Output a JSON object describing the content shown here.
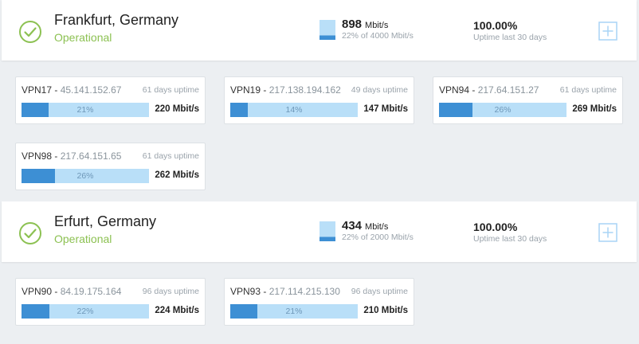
{
  "locations": [
    {
      "name": "Frankfurt, Germany",
      "status": "Operational",
      "bandwidth_value": "898",
      "bandwidth_unit": "Mbit/s",
      "bandwidth_sub": "22% of 4000 Mbit/s",
      "bandwidth_fraction": 0.22,
      "uptime_value": "100.00%",
      "uptime_sub": "Uptime last 30 days",
      "servers": [
        {
          "name": "VPN17",
          "ip": "45.141.152.67",
          "uptime": "61 days uptime",
          "load_label": "21%",
          "load": 0.21,
          "speed": "220 Mbit/s"
        },
        {
          "name": "VPN19",
          "ip": "217.138.194.162",
          "uptime": "49 days uptime",
          "load_label": "14%",
          "load": 0.14,
          "speed": "147 Mbit/s"
        },
        {
          "name": "VPN94",
          "ip": "217.64.151.27",
          "uptime": "61 days uptime",
          "load_label": "26%",
          "load": 0.26,
          "speed": "269 Mbit/s"
        },
        {
          "name": "VPN98",
          "ip": "217.64.151.65",
          "uptime": "61 days uptime",
          "load_label": "26%",
          "load": 0.26,
          "speed": "262 Mbit/s"
        }
      ]
    },
    {
      "name": "Erfurt, Germany",
      "status": "Operational",
      "bandwidth_value": "434",
      "bandwidth_unit": "Mbit/s",
      "bandwidth_sub": "22% of 2000 Mbit/s",
      "bandwidth_fraction": 0.22,
      "uptime_value": "100.00%",
      "uptime_sub": "Uptime last 30 days",
      "servers": [
        {
          "name": "VPN90",
          "ip": "84.19.175.164",
          "uptime": "96 days uptime",
          "load_label": "22%",
          "load": 0.22,
          "speed": "224 Mbit/s"
        },
        {
          "name": "VPN93",
          "ip": "217.114.215.130",
          "uptime": "96 days uptime",
          "load_label": "21%",
          "load": 0.21,
          "speed": "210 Mbit/s"
        }
      ]
    }
  ],
  "colors": {
    "operational": "#8cc152",
    "bar_fill": "#3d8fd4",
    "bar_track": "#b9dff8",
    "expand": "#a9d4f5"
  },
  "icons": {
    "status": "check-circle-icon",
    "bandwidth": "bandwidth-gauge-icon",
    "expand": "plus-square-icon"
  }
}
